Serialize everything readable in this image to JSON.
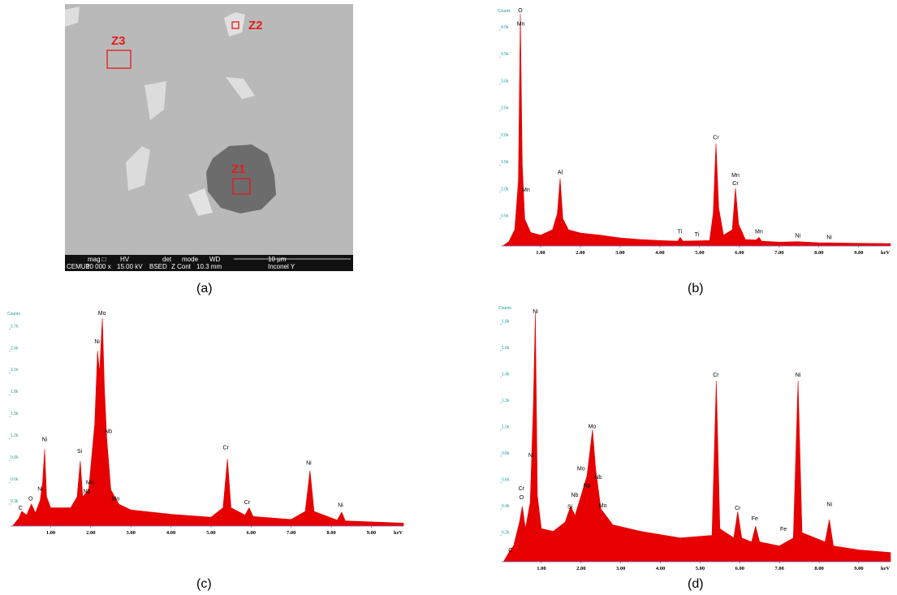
{
  "image": {
    "zones": [
      "Z1",
      "Z2",
      "Z3"
    ],
    "databar": {
      "top": [
        "mag □",
        "HV",
        "det",
        "mode",
        "WD",
        "10 μm"
      ],
      "bottom": [
        "CEMUP",
        "10 000 x",
        "15.00 kV",
        "BSED",
        "Z Cont",
        "10.3 mm",
        "Inconel Y"
      ]
    }
  },
  "captions": [
    "(a)",
    "(b)",
    "(c)",
    "(d)"
  ],
  "chart_data": [
    {
      "type": "area",
      "y_label": "Counts",
      "x_unit": "keV",
      "color": "#e60000",
      "xlim": [
        0,
        9.8
      ],
      "ylim": [
        0,
        4300
      ],
      "xticks": [
        {
          "value": 1,
          "label": "1.00"
        },
        {
          "value": 2,
          "label": "2.00"
        },
        {
          "value": 3,
          "label": "3.00"
        },
        {
          "value": 4,
          "label": "4.00"
        },
        {
          "value": 5,
          "label": "5.00"
        },
        {
          "value": 6,
          "label": "6.00"
        },
        {
          "value": 7,
          "label": "7.00"
        },
        {
          "value": 8,
          "label": "8.00"
        },
        {
          "value": 9,
          "label": "9.00"
        }
      ],
      "yticks": [
        {
          "value": 500,
          "label": "0.5k"
        },
        {
          "value": 1000,
          "label": "1.0k"
        },
        {
          "value": 1500,
          "label": "1.5k"
        },
        {
          "value": 2000,
          "label": "2.0k"
        },
        {
          "value": 2500,
          "label": "2.5k"
        },
        {
          "value": 3000,
          "label": "3.0k"
        },
        {
          "value": 3500,
          "label": "3.5k"
        },
        {
          "value": 4000,
          "label": "4.0k"
        }
      ],
      "x": [
        0.05,
        0.2,
        0.35,
        0.44,
        0.49,
        0.54,
        0.6,
        0.75,
        1.0,
        1.3,
        1.42,
        1.49,
        1.56,
        1.7,
        2.0,
        2.5,
        3.0,
        3.5,
        4.0,
        4.45,
        4.51,
        4.58,
        5.25,
        5.34,
        5.41,
        5.48,
        5.6,
        5.82,
        5.9,
        5.98,
        6.15,
        6.42,
        6.49,
        6.56,
        7.0,
        7.47,
        8.0,
        9.0,
        9.8
      ],
      "values": [
        0,
        80,
        300,
        1200,
        4300,
        1500,
        500,
        250,
        200,
        300,
        600,
        1250,
        500,
        300,
        240,
        200,
        150,
        120,
        100,
        90,
        160,
        90,
        100,
        600,
        1900,
        700,
        200,
        300,
        1070,
        400,
        120,
        110,
        160,
        90,
        70,
        80,
        60,
        50,
        45
      ],
      "annotations": [
        {
          "text": "O",
          "x": 0.49,
          "y": 4300
        },
        {
          "text": "Mn",
          "x": 0.5,
          "y": 4050
        },
        {
          "text": "Mn",
          "x": 0.63,
          "y": 980
        },
        {
          "text": "Al",
          "x": 1.49,
          "y": 1300
        },
        {
          "text": "Cr",
          "x": 5.41,
          "y": 1950
        },
        {
          "text": "Mn",
          "x": 5.9,
          "y": 1250
        },
        {
          "text": "Cr",
          "x": 5.9,
          "y": 1100
        },
        {
          "text": "Ti",
          "x": 4.5,
          "y": 200
        },
        {
          "text": "Ti",
          "x": 4.93,
          "y": 150
        },
        {
          "text": "Mn",
          "x": 6.49,
          "y": 200
        },
        {
          "text": "Ni",
          "x": 7.47,
          "y": 130
        },
        {
          "text": "Ni",
          "x": 8.26,
          "y": 100
        }
      ]
    },
    {
      "type": "area",
      "y_label": "Counts",
      "x_unit": "keV",
      "color": "#e60000",
      "xlim": [
        0,
        9.8
      ],
      "ylim": [
        0,
        2870
      ],
      "xticks": [
        {
          "value": 1,
          "label": "1.00"
        },
        {
          "value": 2,
          "label": "2.00"
        },
        {
          "value": 3,
          "label": "3.00"
        },
        {
          "value": 4,
          "label": "4.00"
        },
        {
          "value": 5,
          "label": "5.00"
        },
        {
          "value": 6,
          "label": "6.00"
        },
        {
          "value": 7,
          "label": "7.00"
        },
        {
          "value": 8,
          "label": "8.00"
        },
        {
          "value": 9,
          "label": "9.00"
        }
      ],
      "yticks": [
        {
          "value": 300,
          "label": "0.3k"
        },
        {
          "value": 600,
          "label": "0.6k"
        },
        {
          "value": 900,
          "label": "0.9k"
        },
        {
          "value": 1200,
          "label": "1.2k"
        },
        {
          "value": 1500,
          "label": "1.5k"
        },
        {
          "value": 1800,
          "label": "1.8k"
        },
        {
          "value": 2100,
          "label": "2.1k"
        },
        {
          "value": 2400,
          "label": "2.4k"
        },
        {
          "value": 2700,
          "label": "2.7k"
        }
      ],
      "x": [
        0.05,
        0.2,
        0.28,
        0.4,
        0.52,
        0.62,
        0.74,
        0.8,
        0.85,
        0.9,
        1.0,
        1.5,
        1.66,
        1.74,
        1.8,
        1.95,
        2.1,
        2.17,
        2.22,
        2.29,
        2.34,
        2.4,
        2.5,
        2.7,
        3.0,
        4.0,
        5.0,
        5.3,
        5.41,
        5.5,
        5.85,
        5.95,
        6.05,
        7.0,
        7.35,
        7.47,
        7.57,
        8.15,
        8.26,
        8.35,
        9.8
      ],
      "values": [
        0,
        100,
        200,
        150,
        300,
        180,
        350,
        600,
        1050,
        400,
        250,
        250,
        400,
        890,
        400,
        500,
        1400,
        2400,
        2100,
        2850,
        1900,
        1200,
        500,
        300,
        220,
        160,
        120,
        250,
        920,
        250,
        150,
        250,
        130,
        90,
        200,
        760,
        200,
        80,
        190,
        70,
        40
      ],
      "annotations": [
        {
          "text": "C",
          "x": 0.25,
          "y": 200
        },
        {
          "text": "O",
          "x": 0.5,
          "y": 330
        },
        {
          "text": "Ni",
          "x": 0.74,
          "y": 460
        },
        {
          "text": "Ni",
          "x": 0.85,
          "y": 1140
        },
        {
          "text": "Si",
          "x": 1.72,
          "y": 980
        },
        {
          "text": "Mo",
          "x": 1.98,
          "y": 550
        },
        {
          "text": "Nb",
          "x": 1.9,
          "y": 430
        },
        {
          "text": "Ni",
          "x": 2.16,
          "y": 2480
        },
        {
          "text": "Mo",
          "x": 2.28,
          "y": 2870
        },
        {
          "text": "Nb",
          "x": 2.44,
          "y": 1250
        },
        {
          "text": "Mo",
          "x": 2.62,
          "y": 330
        },
        {
          "text": "Cr",
          "x": 5.37,
          "y": 1030
        },
        {
          "text": "Cr",
          "x": 5.9,
          "y": 280
        },
        {
          "text": "Ni",
          "x": 7.44,
          "y": 820
        },
        {
          "text": "Ni",
          "x": 8.23,
          "y": 240
        }
      ]
    },
    {
      "type": "area",
      "y_label": "Counts",
      "x_unit": "keV",
      "color": "#e60000",
      "xlim": [
        0,
        9.8
      ],
      "ylim": [
        0,
        1900
      ],
      "xticks": [
        {
          "value": 1,
          "label": "1.00"
        },
        {
          "value": 2,
          "label": "2.00"
        },
        {
          "value": 3,
          "label": "3.00"
        },
        {
          "value": 4,
          "label": "4.00"
        },
        {
          "value": 5,
          "label": "5.00"
        },
        {
          "value": 6,
          "label": "6.00"
        },
        {
          "value": 7,
          "label": "7.00"
        },
        {
          "value": 8,
          "label": "8.00"
        },
        {
          "value": 9,
          "label": "9.00"
        }
      ],
      "yticks": [
        {
          "value": 200,
          "label": "0.2k"
        },
        {
          "value": 400,
          "label": "0.4k"
        },
        {
          "value": 600,
          "label": "0.6k"
        },
        {
          "value": 800,
          "label": "0.8k"
        },
        {
          "value": 1000,
          "label": "1.0k"
        },
        {
          "value": 1200,
          "label": "1.2k"
        },
        {
          "value": 1400,
          "label": "1.4k"
        },
        {
          "value": 1600,
          "label": "1.6k"
        },
        {
          "value": 1800,
          "label": "1.8k"
        }
      ],
      "x": [
        0.05,
        0.2,
        0.3,
        0.45,
        0.52,
        0.6,
        0.72,
        0.8,
        0.85,
        0.9,
        1.0,
        1.3,
        1.6,
        1.74,
        1.85,
        2.0,
        2.15,
        2.29,
        2.37,
        2.5,
        2.8,
        3.5,
        4.5,
        5.3,
        5.41,
        5.5,
        5.85,
        5.95,
        6.05,
        6.3,
        6.4,
        6.5,
        7.0,
        7.35,
        7.47,
        7.57,
        8.15,
        8.26,
        8.36,
        9.0,
        9.8
      ],
      "values": [
        0,
        80,
        120,
        300,
        420,
        250,
        450,
        1200,
        1880,
        500,
        250,
        230,
        300,
        420,
        350,
        500,
        650,
        1000,
        700,
        400,
        280,
        230,
        180,
        200,
        1370,
        250,
        180,
        380,
        180,
        150,
        270,
        150,
        120,
        180,
        1370,
        220,
        150,
        320,
        120,
        90,
        70
      ],
      "annotations": [
        {
          "text": "C",
          "x": 0.22,
          "y": 60
        },
        {
          "text": "Cr",
          "x": 0.5,
          "y": 530
        },
        {
          "text": "O",
          "x": 0.5,
          "y": 460
        },
        {
          "text": "Ni",
          "x": 0.74,
          "y": 780
        },
        {
          "text": "Ni",
          "x": 0.85,
          "y": 1870
        },
        {
          "text": "Si",
          "x": 1.72,
          "y": 390
        },
        {
          "text": "Nb",
          "x": 1.84,
          "y": 480
        },
        {
          "text": "Mo",
          "x": 2.0,
          "y": 680
        },
        {
          "text": "Nb",
          "x": 2.15,
          "y": 550
        },
        {
          "text": "Nb",
          "x": 2.43,
          "y": 615
        },
        {
          "text": "Mo",
          "x": 2.28,
          "y": 1000
        },
        {
          "text": "Mo",
          "x": 2.55,
          "y": 400
        },
        {
          "text": "Cr",
          "x": 5.4,
          "y": 1390
        },
        {
          "text": "Cr",
          "x": 5.95,
          "y": 380
        },
        {
          "text": "Fe",
          "x": 6.38,
          "y": 300
        },
        {
          "text": "Fe",
          "x": 7.1,
          "y": 220
        },
        {
          "text": "Ni",
          "x": 7.47,
          "y": 1390
        },
        {
          "text": "Ni",
          "x": 8.26,
          "y": 410
        }
      ]
    }
  ]
}
